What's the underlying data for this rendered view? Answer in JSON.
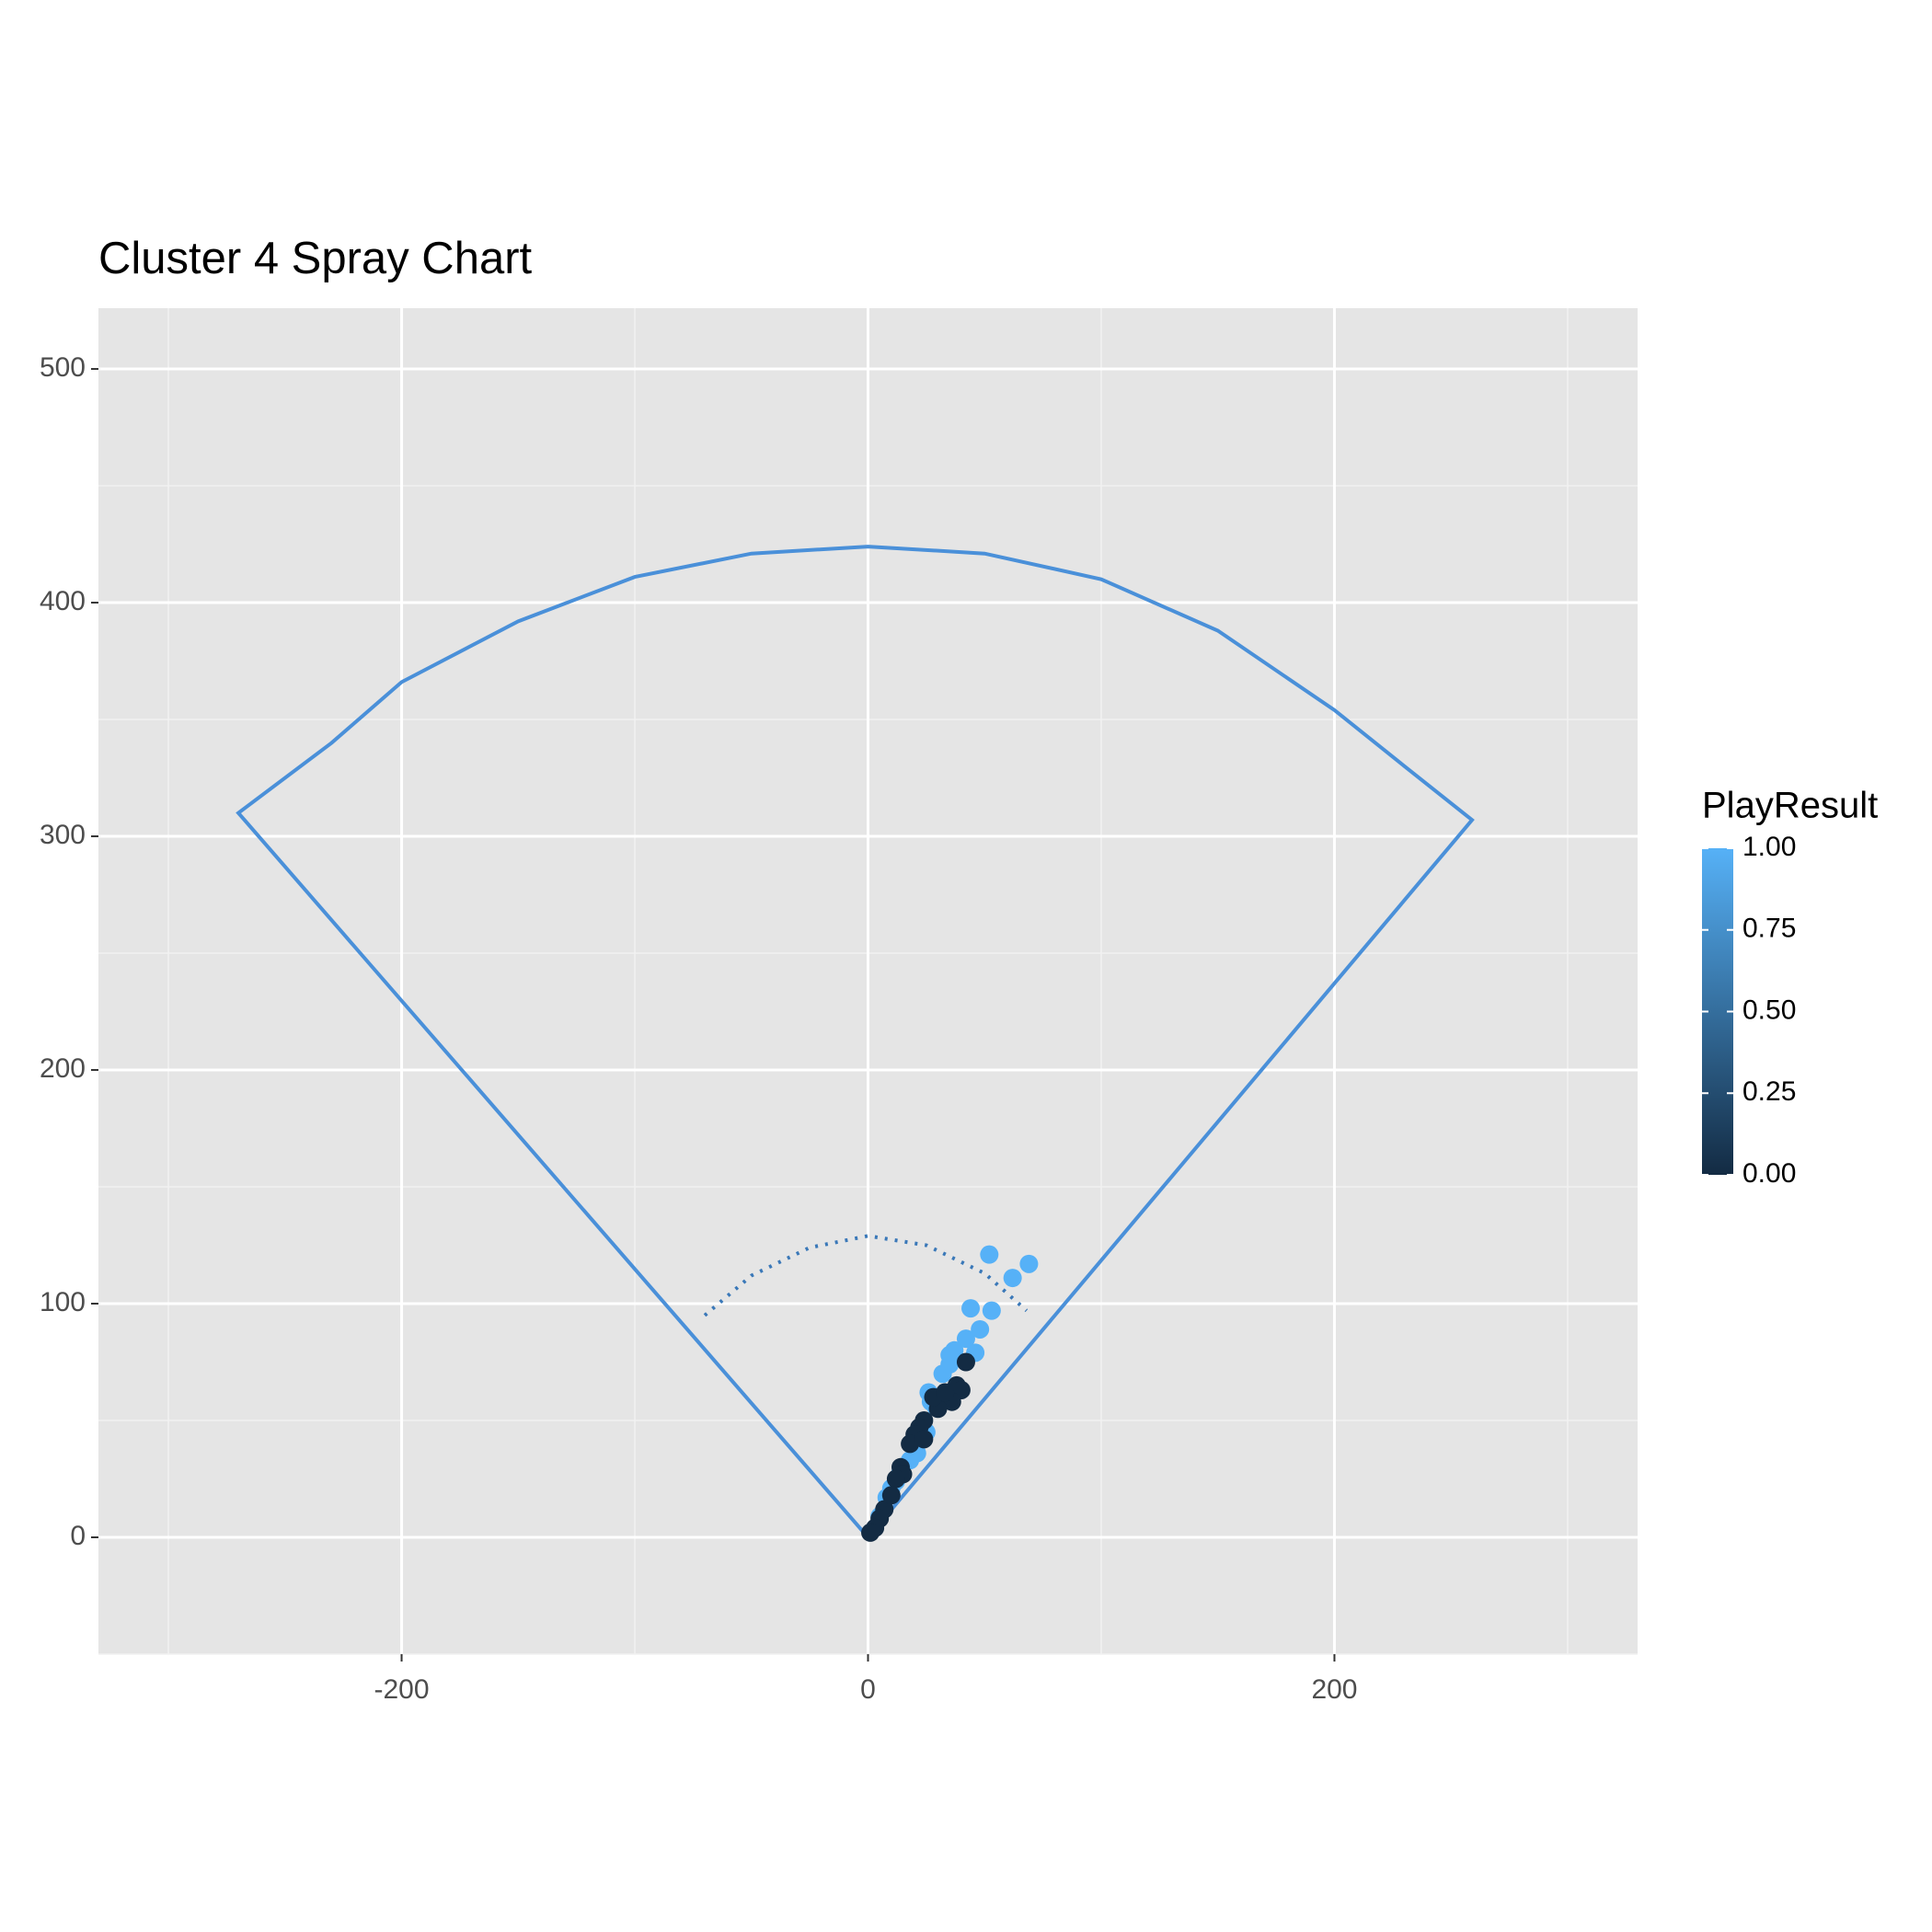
{
  "chart_data": {
    "type": "scatter",
    "title": "Cluster 4 Spray Chart",
    "xlim": [
      -330,
      330
    ],
    "ylim": [
      -50,
      526
    ],
    "xticks": [
      -200,
      0,
      200
    ],
    "yticks": [
      0,
      100,
      200,
      300,
      400,
      500
    ],
    "xminor": [
      -300,
      -100,
      100,
      300
    ],
    "yminor": [
      -50,
      50,
      150,
      250,
      350,
      450
    ],
    "grid": true,
    "x": [
      52,
      62,
      69,
      44,
      53,
      48,
      42,
      37,
      35,
      46,
      32,
      26,
      27,
      35,
      25,
      21,
      18,
      12,
      10,
      5,
      8,
      14,
      29,
      42,
      38,
      40,
      36,
      30,
      28,
      24,
      22,
      20,
      18,
      14,
      15,
      12,
      7,
      5,
      3,
      1,
      24,
      10,
      33
    ],
    "y": [
      121,
      111,
      117,
      98,
      97,
      89,
      85,
      80,
      78,
      79,
      70,
      62,
      58,
      74,
      45,
      36,
      33,
      24,
      21,
      9,
      17,
      28,
      56,
      75,
      65,
      63,
      58,
      55,
      60,
      50,
      47,
      44,
      40,
      30,
      27,
      25,
      12,
      8,
      4,
      2,
      42,
      18,
      62
    ],
    "color_values": [
      1,
      1,
      1,
      1,
      1,
      1,
      1,
      1,
      1,
      1,
      1,
      1,
      1,
      1,
      1,
      1,
      1,
      1,
      1,
      1,
      1,
      1,
      1,
      0,
      0,
      0,
      0,
      0,
      0,
      0,
      0,
      0,
      0,
      0,
      0,
      0,
      0,
      0,
      0,
      0,
      0,
      0,
      0
    ],
    "lines": [
      {
        "color": "#4a90d9",
        "dash": false,
        "x": [
          0,
          -270,
          -230,
          -200,
          -150,
          -100,
          -50,
          0,
          50,
          100,
          150,
          200,
          230,
          259,
          0
        ],
        "y": [
          0,
          310,
          340,
          366,
          392,
          411,
          421,
          424,
          421,
          410,
          388,
          354,
          330,
          307,
          0
        ]
      },
      {
        "color": "#3a78b8",
        "dash": true,
        "x": [
          -70,
          -50,
          -25,
          0,
          25,
          50,
          68
        ],
        "y": [
          95,
          112,
          124,
          129,
          125,
          113,
          97
        ]
      }
    ],
    "colorbar": {
      "title": "PlayResult",
      "low": "#132B43",
      "high": "#56B1F7",
      "ticks": [
        {
          "value": 0,
          "label": "0.00"
        },
        {
          "value": 0.25,
          "label": "0.25"
        },
        {
          "value": 0.5,
          "label": "0.50"
        },
        {
          "value": 0.75,
          "label": "0.75"
        },
        {
          "value": 1,
          "label": "1.00"
        }
      ]
    }
  }
}
